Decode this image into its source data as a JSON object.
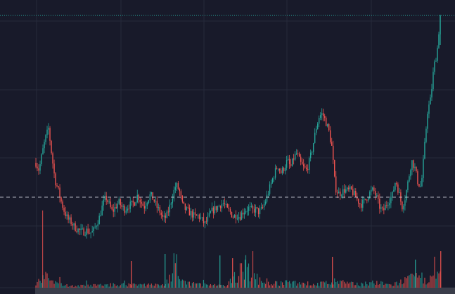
{
  "colors": {
    "background": "#181a2a",
    "grid": "#262a3b",
    "up": "#26a69a",
    "down": "#ef5350",
    "price_line": "#26a69a",
    "reference_line": "#d7dae3",
    "volume_up": "#26a69a",
    "volume_down": "#ef5350",
    "axis_strip": "#3a3d4a"
  },
  "chart_data": {
    "type": "candlestick",
    "title": "",
    "xlabel": "",
    "ylabel": "",
    "grid": true,
    "legend": "none",
    "ylim": [
      0,
      100
    ],
    "reference_levels": {
      "last_price_dotted": 100,
      "dashed_level": 26.0
    },
    "close_path": [
      [
        0,
        40
      ],
      [
        1,
        37
      ],
      [
        2,
        44
      ],
      [
        3,
        50
      ],
      [
        4,
        54
      ],
      [
        5,
        43
      ],
      [
        6,
        33
      ],
      [
        7,
        29
      ],
      [
        8,
        24
      ],
      [
        9,
        20
      ],
      [
        10,
        17
      ],
      [
        11,
        16
      ],
      [
        12,
        14
      ],
      [
        13,
        13
      ],
      [
        14,
        12
      ],
      [
        15,
        12
      ],
      [
        16,
        12.5
      ],
      [
        17,
        11.5
      ],
      [
        18,
        12
      ],
      [
        19,
        15
      ],
      [
        20,
        18
      ],
      [
        21,
        23
      ],
      [
        22,
        26
      ],
      [
        23,
        23
      ],
      [
        24,
        20
      ],
      [
        25,
        22
      ],
      [
        26,
        24
      ],
      [
        27,
        22
      ],
      [
        28,
        21
      ],
      [
        29,
        22.5
      ],
      [
        30,
        23
      ],
      [
        31,
        24
      ],
      [
        32,
        27
      ],
      [
        33,
        24
      ],
      [
        34,
        22
      ],
      [
        35,
        25
      ],
      [
        36,
        27
      ],
      [
        37,
        25
      ],
      [
        38,
        22
      ],
      [
        39,
        20
      ],
      [
        40,
        17
      ],
      [
        41,
        18
      ],
      [
        42,
        22
      ],
      [
        43,
        27
      ],
      [
        44,
        31
      ],
      [
        45,
        29
      ],
      [
        46,
        23
      ],
      [
        47,
        21
      ],
      [
        48,
        20
      ],
      [
        49,
        19
      ],
      [
        50,
        18
      ],
      [
        51,
        18.5
      ],
      [
        52,
        17
      ],
      [
        53,
        15
      ],
      [
        54,
        17
      ],
      [
        55,
        20
      ],
      [
        56,
        21
      ],
      [
        57,
        22
      ],
      [
        58,
        23
      ],
      [
        59,
        23.5
      ],
      [
        60,
        21
      ],
      [
        61,
        20
      ],
      [
        62,
        18
      ],
      [
        63,
        19
      ],
      [
        64,
        18
      ],
      [
        65,
        20
      ],
      [
        66,
        21
      ],
      [
        67,
        21.5
      ],
      [
        68,
        20.5
      ],
      [
        69,
        21
      ],
      [
        70,
        20
      ],
      [
        71,
        21
      ],
      [
        72,
        24
      ],
      [
        73,
        28
      ],
      [
        74,
        32
      ],
      [
        75,
        36
      ],
      [
        76,
        39
      ],
      [
        77,
        36
      ],
      [
        78,
        38
      ],
      [
        79,
        41
      ],
      [
        80,
        38
      ],
      [
        81,
        42
      ],
      [
        82,
        44
      ],
      [
        83,
        40
      ],
      [
        84,
        38
      ],
      [
        85,
        37
      ],
      [
        86,
        41
      ],
      [
        87,
        47
      ],
      [
        88,
        54
      ],
      [
        89,
        59
      ],
      [
        90,
        60
      ],
      [
        91,
        57
      ],
      [
        92,
        53
      ],
      [
        93,
        46
      ],
      [
        94,
        30
      ],
      [
        95,
        27.5
      ],
      [
        96,
        28
      ],
      [
        97,
        29
      ],
      [
        98,
        28.5
      ],
      [
        99,
        29
      ],
      [
        100,
        27
      ],
      [
        101,
        25
      ],
      [
        102,
        23
      ],
      [
        103,
        24
      ],
      [
        104,
        26
      ],
      [
        105,
        28
      ],
      [
        106,
        29
      ],
      [
        107,
        26
      ],
      [
        108,
        22
      ],
      [
        109,
        20
      ],
      [
        110,
        23
      ],
      [
        111,
        25
      ],
      [
        112,
        27
      ],
      [
        113,
        33
      ],
      [
        114,
        28
      ],
      [
        115,
        22
      ],
      [
        116,
        26
      ],
      [
        117,
        33
      ],
      [
        118,
        41
      ],
      [
        119,
        38
      ],
      [
        120,
        32
      ],
      [
        121,
        30
      ],
      [
        122,
        45
      ],
      [
        123,
        61
      ],
      [
        124,
        66
      ],
      [
        125,
        79
      ],
      [
        126,
        85
      ],
      [
        127,
        100
      ]
    ],
    "volume_path": [
      [
        0,
        2
      ],
      [
        2,
        14
      ],
      [
        4,
        10
      ],
      [
        6,
        5
      ],
      [
        9,
        3
      ],
      [
        12,
        2
      ],
      [
        20,
        3
      ],
      [
        30,
        4
      ],
      [
        40,
        3
      ],
      [
        44,
        20
      ],
      [
        46,
        6
      ],
      [
        55,
        3
      ],
      [
        60,
        2
      ],
      [
        64,
        20
      ],
      [
        66,
        24
      ],
      [
        70,
        9
      ],
      [
        75,
        5
      ],
      [
        82,
        6
      ],
      [
        88,
        4
      ],
      [
        94,
        7
      ],
      [
        100,
        4
      ],
      [
        106,
        6
      ],
      [
        112,
        3
      ],
      [
        116,
        9
      ],
      [
        120,
        12
      ],
      [
        124,
        10
      ],
      [
        127,
        14
      ]
    ]
  }
}
